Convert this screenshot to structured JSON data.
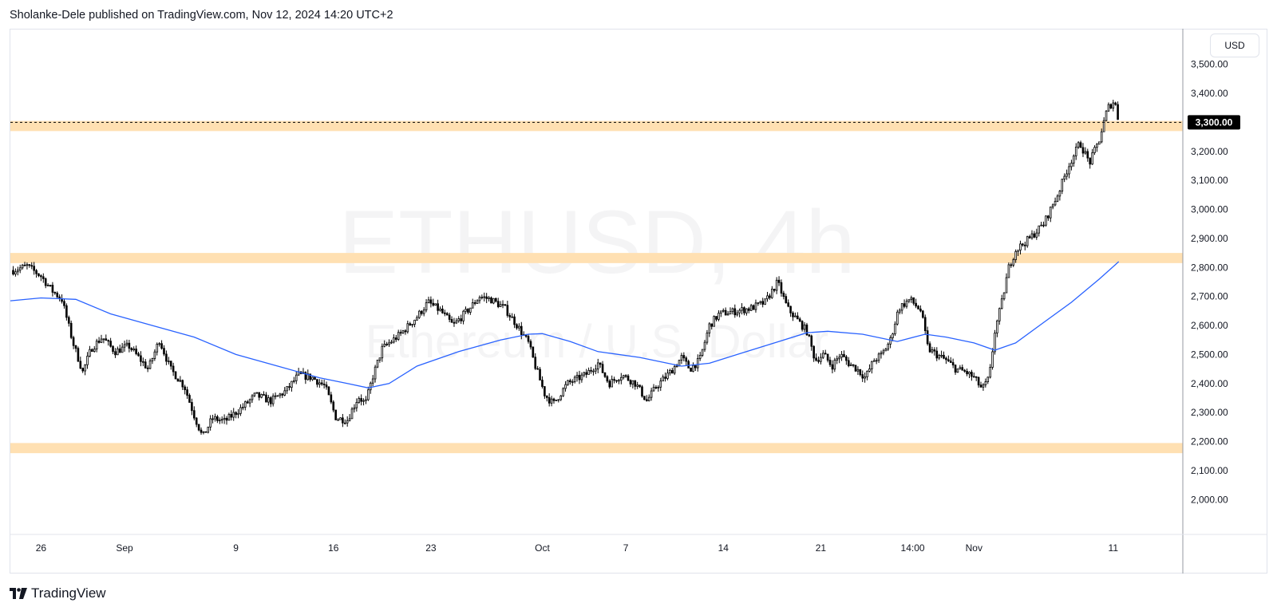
{
  "header": {
    "published_text": "Sholanke-Dele published on TradingView.com, Nov 12, 2024 14:20 UTC+2"
  },
  "currency_button": {
    "label": "USD"
  },
  "brand": {
    "name": "TradingView"
  },
  "colors": {
    "candle_up": "#ffffff",
    "candle_down": "#000000",
    "candle_outline": "#000000",
    "moving_average": "#2962ff",
    "zone": "#ffe0b2",
    "price_tag": "#000000",
    "watermark": "#f4f4f5"
  },
  "chart_data": {
    "type": "candlestick",
    "symbol_watermark": "ETHUSD, 4h",
    "description_watermark": "Ethereum / U.S. Dollar",
    "currency": "USD",
    "timeframe": "4h",
    "y_range": [
      1880,
      3620
    ],
    "y_ticks": [
      "3,500.00",
      "3,400.00",
      "3,300.00",
      "3,200.00",
      "3,100.00",
      "3,000.00",
      "2,900.00",
      "2,800.00",
      "2,700.00",
      "2,600.00",
      "2,500.00",
      "2,400.00",
      "2,300.00",
      "2,200.00",
      "2,100.00",
      "2,000.00"
    ],
    "y_tick_values": [
      3500,
      3400,
      3300,
      3200,
      3100,
      3000,
      2900,
      2800,
      2700,
      2600,
      2500,
      2400,
      2300,
      2200,
      2100,
      2000
    ],
    "x_ticks": [
      {
        "label": "26",
        "day": 0
      },
      {
        "label": "Sep",
        "day": 6
      },
      {
        "label": "9",
        "day": 14
      },
      {
        "label": "16",
        "day": 21
      },
      {
        "label": "23",
        "day": 28
      },
      {
        "label": "Oct",
        "day": 36
      },
      {
        "label": "7",
        "day": 42
      },
      {
        "label": "14",
        "day": 49
      },
      {
        "label": "21",
        "day": 56
      },
      {
        "label": "14:00",
        "day": 62.6
      },
      {
        "label": "Nov",
        "day": 67
      },
      {
        "label": "11",
        "day": 77
      }
    ],
    "x_range_days": [
      -2.2,
      82
    ],
    "current_price": {
      "value": 3300,
      "label": "3,300.00"
    },
    "zones": [
      {
        "low": 3270,
        "high": 3305
      },
      {
        "low": 2815,
        "high": 2850
      },
      {
        "low": 2160,
        "high": 2195
      }
    ],
    "anchors": [
      [
        -2.0,
        2790
      ],
      [
        -1.0,
        2805
      ],
      [
        0.0,
        2770
      ],
      [
        0.8,
        2720
      ],
      [
        1.5,
        2690
      ],
      [
        2.3,
        2540
      ],
      [
        3.0,
        2440
      ],
      [
        3.6,
        2520
      ],
      [
        4.4,
        2560
      ],
      [
        5.3,
        2510
      ],
      [
        6.3,
        2530
      ],
      [
        7.0,
        2490
      ],
      [
        7.7,
        2450
      ],
      [
        8.5,
        2550
      ],
      [
        9.3,
        2450
      ],
      [
        10.3,
        2390
      ],
      [
        11.0,
        2290
      ],
      [
        11.6,
        2215
      ],
      [
        12.3,
        2280
      ],
      [
        13.2,
        2270
      ],
      [
        14.5,
        2320
      ],
      [
        15.4,
        2360
      ],
      [
        16.5,
        2340
      ],
      [
        17.6,
        2375
      ],
      [
        18.5,
        2430
      ],
      [
        19.5,
        2420
      ],
      [
        20.4,
        2390
      ],
      [
        21.2,
        2280
      ],
      [
        22.0,
        2275
      ],
      [
        22.8,
        2355
      ],
      [
        23.3,
        2330
      ],
      [
        23.8,
        2420
      ],
      [
        24.5,
        2520
      ],
      [
        25.8,
        2570
      ],
      [
        27.0,
        2630
      ],
      [
        27.8,
        2680
      ],
      [
        28.7,
        2650
      ],
      [
        29.6,
        2600
      ],
      [
        30.8,
        2660
      ],
      [
        31.5,
        2700
      ],
      [
        32.3,
        2690
      ],
      [
        33.3,
        2660
      ],
      [
        34.2,
        2600
      ],
      [
        35.0,
        2540
      ],
      [
        35.5,
        2460
      ],
      [
        36.2,
        2360
      ],
      [
        36.8,
        2330
      ],
      [
        37.8,
        2400
      ],
      [
        39.1,
        2430
      ],
      [
        40.0,
        2470
      ],
      [
        40.8,
        2400
      ],
      [
        41.7,
        2430
      ],
      [
        42.7,
        2400
      ],
      [
        43.5,
        2340
      ],
      [
        44.2,
        2390
      ],
      [
        45.2,
        2440
      ],
      [
        46.0,
        2490
      ],
      [
        46.6,
        2450
      ],
      [
        47.3,
        2480
      ],
      [
        48.0,
        2600
      ],
      [
        48.7,
        2640
      ],
      [
        50.0,
        2650
      ],
      [
        51.0,
        2660
      ],
      [
        52.0,
        2680
      ],
      [
        52.9,
        2750
      ],
      [
        53.6,
        2660
      ],
      [
        54.3,
        2620
      ],
      [
        55.0,
        2580
      ],
      [
        55.6,
        2480
      ],
      [
        56.2,
        2500
      ],
      [
        56.8,
        2460
      ],
      [
        57.4,
        2500
      ],
      [
        58.0,
        2470
      ],
      [
        58.6,
        2450
      ],
      [
        59.2,
        2420
      ],
      [
        59.8,
        2480
      ],
      [
        60.4,
        2500
      ],
      [
        61.0,
        2550
      ],
      [
        61.6,
        2660
      ],
      [
        62.4,
        2690
      ],
      [
        63.2,
        2650
      ],
      [
        63.7,
        2520
      ],
      [
        64.3,
        2500
      ],
      [
        65.0,
        2480
      ],
      [
        65.7,
        2450
      ],
      [
        66.4,
        2440
      ],
      [
        67.0,
        2420
      ],
      [
        67.6,
        2380
      ],
      [
        68.1,
        2420
      ],
      [
        68.5,
        2580
      ],
      [
        69.0,
        2680
      ],
      [
        69.5,
        2800
      ],
      [
        70.0,
        2860
      ],
      [
        71.0,
        2900
      ],
      [
        72.0,
        2950
      ],
      [
        73.0,
        3050
      ],
      [
        73.8,
        3150
      ],
      [
        74.6,
        3230
      ],
      [
        75.3,
        3160
      ],
      [
        76.0,
        3240
      ],
      [
        76.6,
        3350
      ],
      [
        77.1,
        3375
      ],
      [
        77.4,
        3300
      ]
    ],
    "ma_points": [
      [
        -2.2,
        2685
      ],
      [
        0.0,
        2695
      ],
      [
        2.5,
        2690
      ],
      [
        5.0,
        2640
      ],
      [
        8.0,
        2600
      ],
      [
        11.0,
        2560
      ],
      [
        14.0,
        2500
      ],
      [
        17.0,
        2460
      ],
      [
        20.0,
        2420
      ],
      [
        22.0,
        2400
      ],
      [
        23.5,
        2385
      ],
      [
        25.0,
        2400
      ],
      [
        27.0,
        2460
      ],
      [
        30.0,
        2510
      ],
      [
        33.0,
        2550
      ],
      [
        35.0,
        2570
      ],
      [
        36.0,
        2572
      ],
      [
        38.0,
        2545
      ],
      [
        40.0,
        2510
      ],
      [
        43.0,
        2490
      ],
      [
        46.0,
        2460
      ],
      [
        48.0,
        2470
      ],
      [
        50.0,
        2500
      ],
      [
        53.0,
        2545
      ],
      [
        55.0,
        2575
      ],
      [
        56.5,
        2580
      ],
      [
        59.0,
        2570
      ],
      [
        61.5,
        2545
      ],
      [
        63.5,
        2570
      ],
      [
        65.0,
        2560
      ],
      [
        67.0,
        2540
      ],
      [
        68.5,
        2515
      ],
      [
        70.0,
        2540
      ],
      [
        72.0,
        2610
      ],
      [
        74.0,
        2680
      ],
      [
        76.0,
        2760
      ],
      [
        77.4,
        2820
      ]
    ]
  }
}
